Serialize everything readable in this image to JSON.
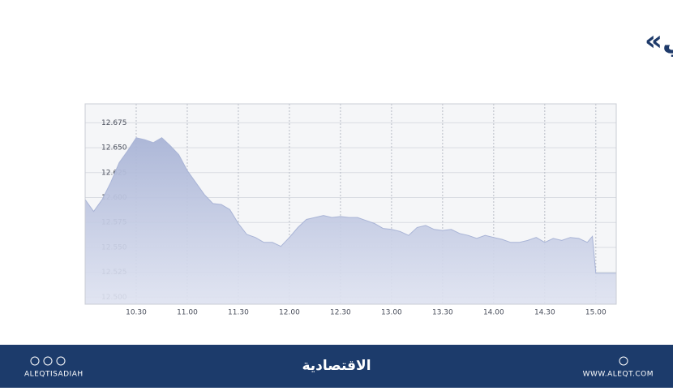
{
  "chart_data": {
    "type": "area",
    "title": "مؤشر «تاسي»",
    "x": [
      "10.00",
      "10.05",
      "10.10",
      "10.15",
      "10.20",
      "10.25",
      "10.30",
      "10.35",
      "10.40",
      "10.45",
      "10.50",
      "10.55",
      "11.00",
      "11.05",
      "11.10",
      "11.15",
      "11.20",
      "11.25",
      "11.30",
      "11.35",
      "11.40",
      "11.45",
      "11.50",
      "11.55",
      "12.00",
      "12.05",
      "12.10",
      "12.15",
      "12.20",
      "12.25",
      "12.30",
      "12.35",
      "12.40",
      "12.45",
      "12.50",
      "12.55",
      "13.00",
      "13.05",
      "13.10",
      "13.15",
      "13.20",
      "13.25",
      "13.30",
      "13.35",
      "13.40",
      "13.45",
      "13.50",
      "13.55",
      "14.00",
      "14.05",
      "14.10",
      "14.15",
      "14.20",
      "14.25",
      "14.30",
      "14.35",
      "14.40",
      "14.45",
      "14.50",
      "14.55",
      "14.58",
      "15.00",
      "15.12"
    ],
    "values": [
      12.598,
      12.586,
      12.598,
      12.615,
      12.635,
      12.647,
      12.66,
      12.658,
      12.655,
      12.66,
      12.652,
      12.643,
      12.627,
      12.615,
      12.603,
      12.594,
      12.593,
      12.588,
      12.574,
      12.563,
      12.56,
      12.555,
      12.555,
      12.551,
      12.56,
      12.57,
      12.578,
      12.58,
      12.582,
      12.58,
      12.581,
      12.58,
      12.58,
      12.577,
      12.574,
      12.569,
      12.568,
      12.566,
      12.562,
      12.57,
      12.572,
      12.568,
      12.567,
      12.568,
      12.564,
      12.562,
      12.559,
      12.562,
      12.56,
      12.558,
      12.555,
      12.555,
      12.557,
      12.56,
      12.555,
      12.559,
      12.557,
      12.56,
      12.559,
      12.555,
      12.561,
      12.524,
      12.524
    ],
    "color": "#a9b4d6",
    "xlim": [
      "10.00",
      "15.12"
    ],
    "xticks": [
      "10.30",
      "11.00",
      "11.30",
      "12.00",
      "12.30",
      "13.00",
      "13.30",
      "14.00",
      "14.30",
      "15.00"
    ],
    "ylim": [
      12.493,
      12.694
    ],
    "yticks": [
      {
        "value": 12.5,
        "label": "12.500"
      },
      12.525,
      {
        "value": 12.55,
        "label": "12.550"
      },
      12.575,
      {
        "value": 12.6,
        "label": "12.600"
      },
      12.625,
      {
        "value": 12.65,
        "label": "12.650"
      },
      12.675
    ],
    "grid": true
  },
  "footer": {
    "handle": "ALEQTISADIAH",
    "brand": "الاقتصادية",
    "website": "WWW.ALEQT.COM"
  }
}
